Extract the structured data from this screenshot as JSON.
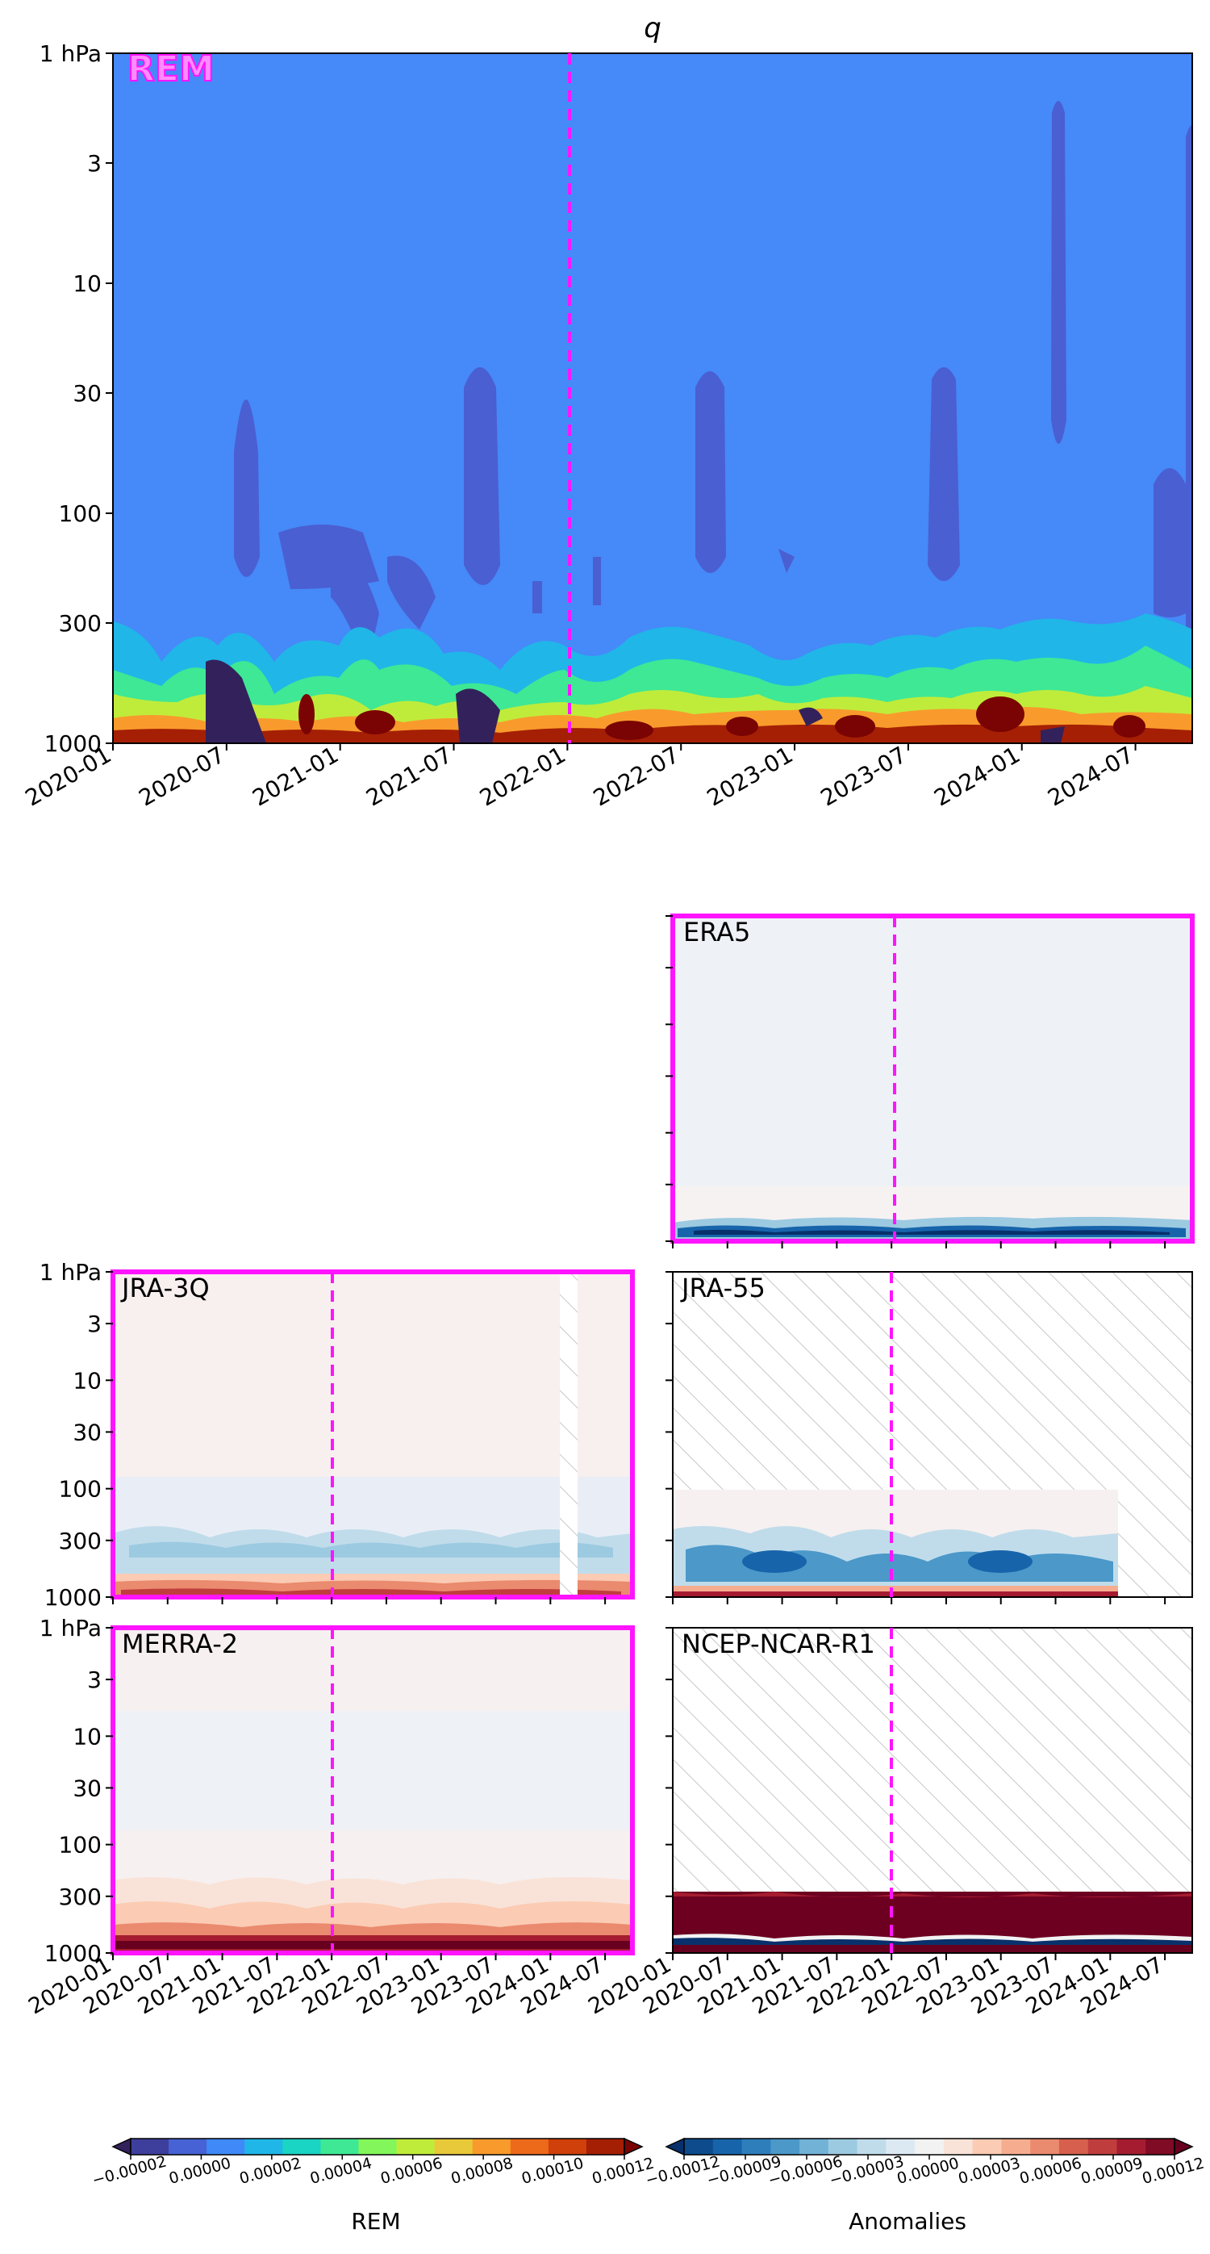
{
  "chart_data": [
    {
      "type": "heatmap",
      "title": "q",
      "panel_label": "REM",
      "ylabel_unit": "hPa",
      "y_scale": "log",
      "y_range": [
        1000,
        1
      ],
      "y_ticks": [
        "1 hPa",
        "3",
        "10",
        "30",
        "100",
        "300",
        "1000"
      ],
      "x_ticks": [
        "2020-01",
        "2020-07",
        "2021-01",
        "2021-07",
        "2022-01",
        "2022-07",
        "2023-01",
        "2023-07",
        "2024-01",
        "2024-07"
      ],
      "x_range": [
        "2020-01",
        "2024-10"
      ],
      "marker_line": "2021-12",
      "colorscale": "REM",
      "description_values": {
        "background_value": 1e-05,
        "low_pockets_value": -1e-05,
        "boundary_layer_peak": 0.00012
      }
    },
    {
      "type": "heatmap",
      "panel_label": "ERA5",
      "colorscale": "Anomalies",
      "highlighted": true,
      "marker_line": "2021-12",
      "near_surface_anomaly": -9e-05
    },
    {
      "type": "heatmap",
      "panel_label": "JRA-3Q",
      "colorscale": "Anomalies",
      "highlighted": true,
      "marker_line": "2021-12",
      "missing_period": [
        "2024-03",
        "2024-05"
      ],
      "y_ticks": [
        "1 hPa",
        "3",
        "10",
        "30",
        "100",
        "300",
        "1000"
      ]
    },
    {
      "type": "heatmap",
      "panel_label": "JRA-55",
      "colorscale": "Anomalies",
      "highlighted": false,
      "marker_line": "2021-12",
      "data_available_until": "2024-01",
      "data_top_hPa": 100
    },
    {
      "type": "heatmap",
      "panel_label": "MERRA-2",
      "colorscale": "Anomalies",
      "highlighted": true,
      "marker_line": "2021-12",
      "y_ticks": [
        "1 hPa",
        "3",
        "10",
        "30",
        "100",
        "300",
        "1000"
      ],
      "x_ticks": [
        "2020-01",
        "2020-07",
        "2021-01",
        "2021-07",
        "2022-01",
        "2022-07",
        "2023-01",
        "2023-07",
        "2024-01",
        "2024-07"
      ]
    },
    {
      "type": "heatmap",
      "panel_label": "NCEP-NCAR-R1",
      "colorscale": "Anomalies",
      "highlighted": false,
      "marker_line": "2021-12",
      "data_top_hPa": 300,
      "x_ticks": [
        "2020-01",
        "2020-07",
        "2021-01",
        "2021-07",
        "2022-01",
        "2022-07",
        "2023-01",
        "2023-07",
        "2024-01",
        "2024-07"
      ]
    }
  ],
  "colorbars": {
    "rem": {
      "label": "REM",
      "ticks": [
        "−0.00002",
        "0.00000",
        "0.00002",
        "0.00004",
        "0.00006",
        "0.00008",
        "0.00010",
        "0.00012"
      ],
      "colors": [
        "#33215b",
        "#3e3f9c",
        "#4662d4",
        "#3f8af8",
        "#20b6e8",
        "#1ad4c4",
        "#3ee895",
        "#82f65a",
        "#bfec3a",
        "#e8c93a",
        "#f89b2c",
        "#ed6a1b",
        "#cf400b",
        "#a51f05",
        "#7a0403"
      ]
    },
    "anom": {
      "label": "Anomalies",
      "ticks": [
        "−0.00012",
        "−0.00009",
        "−0.00006",
        "−0.00003",
        "0.00000",
        "0.00003",
        "0.00006",
        "0.00009",
        "0.00012"
      ],
      "colors": [
        "#08306b",
        "#0d4b8c",
        "#1764ab",
        "#2e7ebc",
        "#4b98c9",
        "#72b2d7",
        "#9ccae1",
        "#c0dceb",
        "#dde9f2",
        "#f2f2f2",
        "#f9e3d8",
        "#fbcbb4",
        "#f6ad8f",
        "#ea8a6e",
        "#d6604d",
        "#c03d3e",
        "#a51c30",
        "#7f0b24",
        "#67001f"
      ]
    }
  },
  "colors": {
    "highlight": "#ff14ff",
    "marker": "#ff14ff"
  }
}
